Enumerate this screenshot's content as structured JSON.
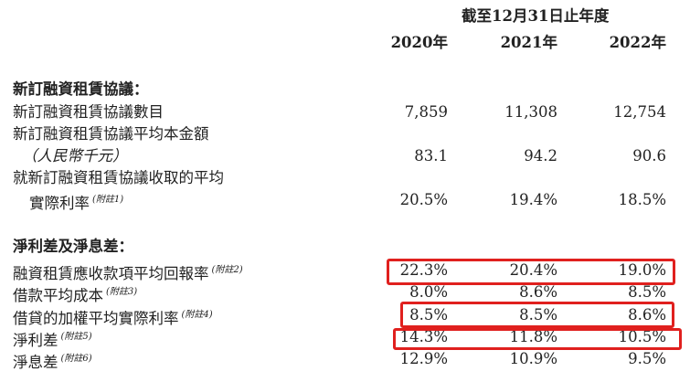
{
  "header": {
    "period": "截至12月31日止年度",
    "years": [
      "2020年",
      "2021年",
      "2022年"
    ]
  },
  "section1": {
    "title": "新訂融資租賃協議：",
    "rows": [
      {
        "label": "新訂融資租賃協議數目",
        "values": [
          "7,859",
          "11,308",
          "12,754"
        ]
      },
      {
        "label": "新訂融資租賃協議平均本金額",
        "label2": "（人民幣千元）",
        "values": [
          "83.1",
          "94.2",
          "90.6"
        ]
      },
      {
        "label": "就新訂融資租賃協議收取的平均",
        "label2": "實際利率",
        "note": "(附註1)",
        "values": [
          "20.5%",
          "19.4%",
          "18.5%"
        ]
      }
    ]
  },
  "section2": {
    "title": "淨利差及淨息差：",
    "rows": [
      {
        "label": "融資租賃應收款項平均回報率",
        "note": "(附註2)",
        "values": [
          "22.3%",
          "20.4%",
          "19.0%"
        ],
        "highlighted": true
      },
      {
        "label": "借款平均成本",
        "note": "(附註3)",
        "values": [
          "8.0%",
          "8.6%",
          "8.5%"
        ]
      },
      {
        "label": "借貸的加權平均實際利率",
        "note": "(附註4)",
        "values": [
          "8.5%",
          "8.5%",
          "8.6%"
        ],
        "highlighted": true
      },
      {
        "label": "淨利差",
        "note": "(附註5)",
        "values": [
          "14.3%",
          "11.8%",
          "10.5%"
        ],
        "highlighted": true
      },
      {
        "label": "淨息差",
        "note": "(附註6)",
        "values": [
          "12.9%",
          "10.9%",
          "9.5%"
        ]
      }
    ]
  },
  "highlight_color": "#e0201e"
}
